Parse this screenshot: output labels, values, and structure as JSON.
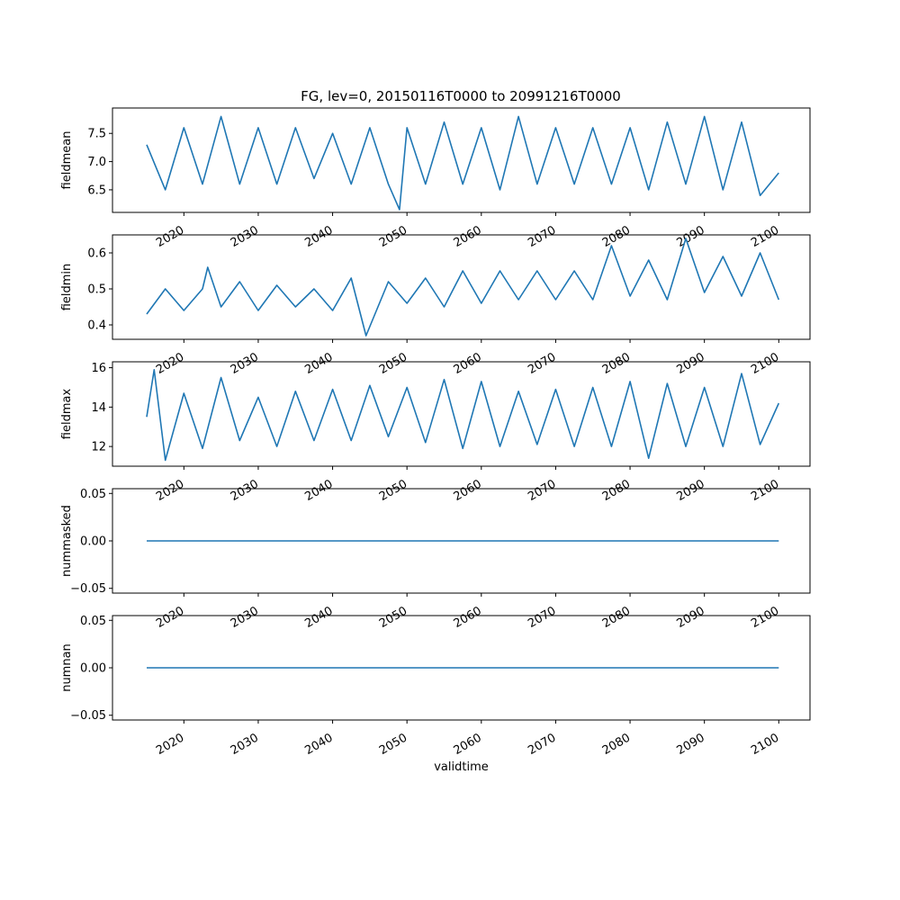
{
  "figure": {
    "title": "FG, lev=0, 20150116T0000 to 20991216T0000",
    "line_color": "#1f77b4"
  },
  "chart_data": [
    {
      "type": "line",
      "ylabel": "fieldmean",
      "xlabel": "",
      "xlim": [
        2010.4,
        2104.2
      ],
      "ylim": [
        6.1,
        7.95
      ],
      "yticks": [
        6.5,
        7.0,
        7.5
      ],
      "ytick_labels": [
        "6.5",
        "7.0",
        "7.5"
      ],
      "xticks": [
        2020,
        2030,
        2040,
        2050,
        2060,
        2070,
        2080,
        2090,
        2100
      ],
      "xtick_labels": [
        "2020",
        "2030",
        "2040",
        "2050",
        "2060",
        "2070",
        "2080",
        "2090",
        "2100"
      ],
      "series": [
        {
          "x": [
            2015.0,
            2017.5,
            2020.0,
            2022.5,
            2025.0,
            2027.5,
            2030.0,
            2032.5,
            2035.0,
            2037.5,
            2040.0,
            2042.5,
            2045.0,
            2047.5,
            2049.0,
            2050.0,
            2052.5,
            2055.0,
            2057.5,
            2060.0,
            2062.5,
            2065.0,
            2067.5,
            2070.0,
            2072.5,
            2075.0,
            2077.5,
            2080.0,
            2082.5,
            2085.0,
            2087.5,
            2090.0,
            2092.5,
            2095.0,
            2097.5,
            2100.0
          ],
          "y": [
            7.3,
            6.5,
            7.6,
            6.6,
            7.8,
            6.6,
            7.6,
            6.6,
            7.6,
            6.7,
            7.5,
            6.6,
            7.6,
            6.6,
            6.15,
            7.6,
            6.6,
            7.7,
            6.6,
            7.6,
            6.5,
            7.8,
            6.6,
            7.6,
            6.6,
            7.6,
            6.6,
            7.6,
            6.5,
            7.7,
            6.6,
            7.8,
            6.5,
            7.7,
            6.4,
            6.8
          ]
        }
      ]
    },
    {
      "type": "line",
      "ylabel": "fieldmin",
      "xlabel": "",
      "xlim": [
        2010.4,
        2104.2
      ],
      "ylim": [
        0.36,
        0.65
      ],
      "yticks": [
        0.4,
        0.5,
        0.6
      ],
      "ytick_labels": [
        "0.4",
        "0.5",
        "0.6"
      ],
      "xticks": [
        2020,
        2030,
        2040,
        2050,
        2060,
        2070,
        2080,
        2090,
        2100
      ],
      "xtick_labels": [
        "2020",
        "2030",
        "2040",
        "2050",
        "2060",
        "2070",
        "2080",
        "2090",
        "2100"
      ],
      "series": [
        {
          "x": [
            2015.0,
            2017.5,
            2020.0,
            2022.5,
            2023.2,
            2025.0,
            2027.5,
            2030.0,
            2032.5,
            2035.0,
            2037.5,
            2040.0,
            2042.5,
            2044.5,
            2047.5,
            2050.0,
            2052.5,
            2055.0,
            2057.5,
            2060.0,
            2062.5,
            2065.0,
            2067.5,
            2070.0,
            2072.5,
            2075.0,
            2077.5,
            2080.0,
            2082.5,
            2085.0,
            2087.5,
            2090.0,
            2092.5,
            2095.0,
            2097.5,
            2100.0
          ],
          "y": [
            0.43,
            0.5,
            0.44,
            0.5,
            0.56,
            0.45,
            0.52,
            0.44,
            0.51,
            0.45,
            0.5,
            0.44,
            0.53,
            0.37,
            0.52,
            0.46,
            0.53,
            0.45,
            0.55,
            0.46,
            0.55,
            0.47,
            0.55,
            0.47,
            0.55,
            0.47,
            0.62,
            0.48,
            0.58,
            0.47,
            0.64,
            0.49,
            0.59,
            0.48,
            0.6,
            0.47
          ]
        }
      ]
    },
    {
      "type": "line",
      "ylabel": "fieldmax",
      "xlabel": "",
      "xlim": [
        2010.4,
        2104.2
      ],
      "ylim": [
        11.0,
        16.3
      ],
      "yticks": [
        12,
        14,
        16
      ],
      "ytick_labels": [
        "12",
        "14",
        "16"
      ],
      "xticks": [
        2020,
        2030,
        2040,
        2050,
        2060,
        2070,
        2080,
        2090,
        2100
      ],
      "xtick_labels": [
        "2020",
        "2030",
        "2040",
        "2050",
        "2060",
        "2070",
        "2080",
        "2090",
        "2100"
      ],
      "series": [
        {
          "x": [
            2015.0,
            2016.0,
            2017.5,
            2020.0,
            2022.5,
            2025.0,
            2027.5,
            2030.0,
            2032.5,
            2035.0,
            2037.5,
            2040.0,
            2042.5,
            2045.0,
            2047.5,
            2050.0,
            2052.5,
            2055.0,
            2057.5,
            2060.0,
            2062.5,
            2065.0,
            2067.5,
            2070.0,
            2072.5,
            2075.0,
            2077.5,
            2080.0,
            2082.5,
            2085.0,
            2087.5,
            2090.0,
            2092.5,
            2095.0,
            2097.5,
            2100.0
          ],
          "y": [
            13.5,
            15.9,
            11.3,
            14.7,
            11.9,
            15.5,
            12.3,
            14.5,
            12.0,
            14.8,
            12.3,
            14.9,
            12.3,
            15.1,
            12.5,
            15.0,
            12.2,
            15.4,
            11.9,
            15.3,
            12.0,
            14.8,
            12.1,
            14.9,
            12.0,
            15.0,
            12.0,
            15.3,
            11.4,
            15.2,
            12.0,
            15.0,
            12.0,
            15.7,
            12.1,
            14.2
          ]
        }
      ]
    },
    {
      "type": "line",
      "ylabel": "nummasked",
      "xlabel": "",
      "xlim": [
        2010.4,
        2104.2
      ],
      "ylim": [
        -0.055,
        0.055
      ],
      "yticks": [
        -0.05,
        0.0,
        0.05
      ],
      "ytick_labels": [
        "−0.05",
        "0.00",
        "0.05"
      ],
      "xticks": [
        2020,
        2030,
        2040,
        2050,
        2060,
        2070,
        2080,
        2090,
        2100
      ],
      "xtick_labels": [
        "2020",
        "2030",
        "2040",
        "2050",
        "2060",
        "2070",
        "2080",
        "2090",
        "2100"
      ],
      "series": [
        {
          "x": [
            2015.0,
            2100.0
          ],
          "y": [
            0.0,
            0.0
          ]
        }
      ]
    },
    {
      "type": "line",
      "ylabel": "numnan",
      "xlabel": "validtime",
      "xlim": [
        2010.4,
        2104.2
      ],
      "ylim": [
        -0.055,
        0.055
      ],
      "yticks": [
        -0.05,
        0.0,
        0.05
      ],
      "ytick_labels": [
        "−0.05",
        "0.00",
        "0.05"
      ],
      "xticks": [
        2020,
        2030,
        2040,
        2050,
        2060,
        2070,
        2080,
        2090,
        2100
      ],
      "xtick_labels": [
        "2020",
        "2030",
        "2040",
        "2050",
        "2060",
        "2070",
        "2080",
        "2090",
        "2100"
      ],
      "series": [
        {
          "x": [
            2015.0,
            2100.0
          ],
          "y": [
            0.0,
            0.0
          ]
        }
      ]
    }
  ]
}
